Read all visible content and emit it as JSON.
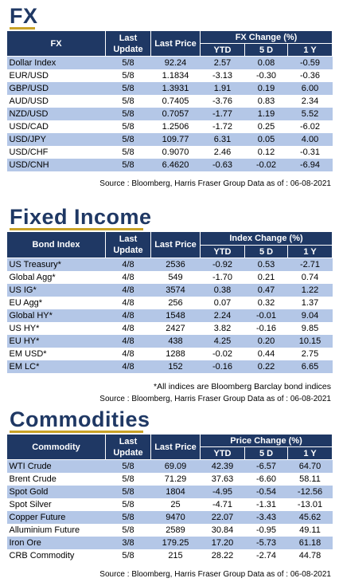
{
  "fx": {
    "title": "FX",
    "header": {
      "col1": "FX",
      "last_update": "Last Update",
      "last_price": "Last Price",
      "group": "FX Change (%)",
      "ytd": "YTD",
      "d5": "5 D",
      "y1": "1 Y"
    },
    "rows": [
      {
        "name": "Dollar Index",
        "date": "5/8",
        "price": "92.24",
        "ytd": "2.57",
        "d5": "0.08",
        "y1": "-0.59"
      },
      {
        "name": "EUR/USD",
        "date": "5/8",
        "price": "1.1834",
        "ytd": "-3.13",
        "d5": "-0.30",
        "y1": "-0.36"
      },
      {
        "name": "GBP/USD",
        "date": "5/8",
        "price": "1.3931",
        "ytd": "1.91",
        "d5": "0.19",
        "y1": "6.00"
      },
      {
        "name": "AUD/USD",
        "date": "5/8",
        "price": "0.7405",
        "ytd": "-3.76",
        "d5": "0.83",
        "y1": "2.34"
      },
      {
        "name": "NZD/USD",
        "date": "5/8",
        "price": "0.7057",
        "ytd": "-1.77",
        "d5": "1.19",
        "y1": "5.52"
      },
      {
        "name": "USD/CAD",
        "date": "5/8",
        "price": "1.2506",
        "ytd": "-1.72",
        "d5": "0.25",
        "y1": "-6.02"
      },
      {
        "name": "USD/JPY",
        "date": "5/8",
        "price": "109.77",
        "ytd": "6.31",
        "d5": "0.05",
        "y1": "4.00"
      },
      {
        "name": "USD/CHF",
        "date": "5/8",
        "price": "0.9070",
        "ytd": "2.46",
        "d5": "0.12",
        "y1": "-0.31"
      },
      {
        "name": "USD/CNH",
        "date": "5/8",
        "price": "6.4620",
        "ytd": "-0.63",
        "d5": "-0.02",
        "y1": "-6.94"
      }
    ],
    "source": "Source : Bloomberg, Harris Fraser Group Data as of : 06-08-2021"
  },
  "fixed_income": {
    "title": "Fixed Income",
    "header": {
      "col1": "Bond Index",
      "last_update": "Last Update",
      "last_price": "Last Price",
      "group": "Index Change (%)",
      "ytd": "YTD",
      "d5": "5 D",
      "y1": "1 Y"
    },
    "rows": [
      {
        "name": "US Treasury*",
        "date": "4/8",
        "price": "2536",
        "ytd": "-0.92",
        "d5": "0.53",
        "y1": "-2.71"
      },
      {
        "name": "Global Agg*",
        "date": "4/8",
        "price": "549",
        "ytd": "-1.70",
        "d5": "0.21",
        "y1": "0.74"
      },
      {
        "name": "US IG*",
        "date": "4/8",
        "price": "3574",
        "ytd": "0.38",
        "d5": "0.47",
        "y1": "1.22"
      },
      {
        "name": "EU Agg*",
        "date": "4/8",
        "price": "256",
        "ytd": "0.07",
        "d5": "0.32",
        "y1": "1.37"
      },
      {
        "name": "Global HY*",
        "date": "4/8",
        "price": "1548",
        "ytd": "2.24",
        "d5": "-0.01",
        "y1": "9.04"
      },
      {
        "name": "US HY*",
        "date": "4/8",
        "price": "2427",
        "ytd": "3.82",
        "d5": "-0.16",
        "y1": "9.85"
      },
      {
        "name": "EU HY*",
        "date": "4/8",
        "price": "438",
        "ytd": "4.25",
        "d5": "0.20",
        "y1": "10.15"
      },
      {
        "name": "EM USD*",
        "date": "4/8",
        "price": "1288",
        "ytd": "-0.02",
        "d5": "0.44",
        "y1": "2.75"
      },
      {
        "name": "EM LC*",
        "date": "4/8",
        "price": "152",
        "ytd": "-0.16",
        "d5": "0.22",
        "y1": "6.65"
      }
    ],
    "note": "*All indices are Bloomberg Barclay bond indices",
    "source": "Source : Bloomberg, Harris Fraser Group Data as of : 06-08-2021"
  },
  "commodities": {
    "title": "Commodities",
    "header": {
      "col1": "Commodity",
      "last_update": "Last Update",
      "last_price": "Last Price",
      "group": "Price Change (%)",
      "ytd": "YTD",
      "d5": "5 D",
      "y1": "1 Y"
    },
    "rows": [
      {
        "name": "WTI Crude",
        "date": "5/8",
        "price": "69.09",
        "ytd": "42.39",
        "d5": "-6.57",
        "y1": "64.70"
      },
      {
        "name": "Brent Crude",
        "date": "5/8",
        "price": "71.29",
        "ytd": "37.63",
        "d5": "-6.60",
        "y1": "58.11"
      },
      {
        "name": "Spot Gold",
        "date": "5/8",
        "price": "1804",
        "ytd": "-4.95",
        "d5": "-0.54",
        "y1": "-12.56"
      },
      {
        "name": "Spot Silver",
        "date": "5/8",
        "price": "25",
        "ytd": "-4.71",
        "d5": "-1.31",
        "y1": "-13.01"
      },
      {
        "name": "Copper Future",
        "date": "5/8",
        "price": "9470",
        "ytd": "22.07",
        "d5": "-3.43",
        "y1": "45.62"
      },
      {
        "name": "Alluminium Future",
        "date": "5/8",
        "price": "2589",
        "ytd": "30.84",
        "d5": "-0.95",
        "y1": "49.11"
      },
      {
        "name": "Iron Ore",
        "date": "3/8",
        "price": "179.25",
        "ytd": "17.20",
        "d5": "-5.73",
        "y1": "61.18"
      },
      {
        "name": "CRB Commodity",
        "date": "5/8",
        "price": "215",
        "ytd": "28.22",
        "d5": "-2.74",
        "y1": "44.78"
      }
    ],
    "source": "Source : Bloomberg, Harris Fraser Group Data as of : 06-08-2021"
  }
}
